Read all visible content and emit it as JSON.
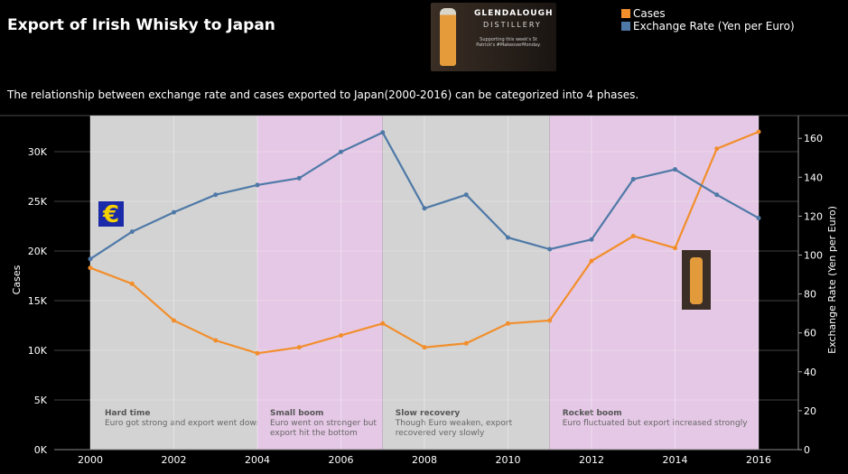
{
  "title": "Export of Irish Whisky to Japan",
  "subtitle": "The relationship between exchange rate and cases exported to Japan(2000-2016) can be categorized into 4 phases.",
  "ad": {
    "line1": "GLENDALOUGH",
    "line2": "DISTILLERY",
    "line3": "Supporting this week's St Patrick's #MakeoverMonday."
  },
  "chart_data": {
    "type": "line",
    "x": [
      2000,
      2001,
      2002,
      2003,
      2004,
      2005,
      2006,
      2007,
      2008,
      2009,
      2010,
      2011,
      2012,
      2013,
      2014,
      2015,
      2016
    ],
    "xticks": [
      "2000",
      "2002",
      "2004",
      "2006",
      "2008",
      "2010",
      "2012",
      "2014",
      "2016"
    ],
    "ylabel": "Cases",
    "y2label": "Exchange Rate (Yen per Euro)",
    "ylim": [
      0,
      33500
    ],
    "y2lim": [
      0,
      172
    ],
    "yticks": [
      "0K",
      "5K",
      "10K",
      "15K",
      "20K",
      "25K",
      "30K"
    ],
    "y2ticks": [
      "0",
      "20",
      "40",
      "60",
      "80",
      "100",
      "120",
      "140",
      "160"
    ],
    "series": [
      {
        "name": "Cases",
        "axis": "left",
        "color": "#f28e2b",
        "values": [
          18300,
          16700,
          13000,
          11000,
          9700,
          10300,
          11500,
          12700,
          10300,
          10700,
          12700,
          13000,
          19000,
          21500,
          20300,
          30300,
          32000
        ]
      },
      {
        "name": "Exchange Rate (Yen per Euro)",
        "axis": "right",
        "color": "#4e79a7",
        "values": [
          98,
          112,
          122,
          131,
          136,
          139.5,
          153,
          163,
          124,
          131,
          109,
          103,
          108,
          139,
          144,
          131,
          119
        ]
      }
    ],
    "phases": [
      {
        "from": 2000,
        "to": 2004,
        "color": "#d3d3d3",
        "title": "Hard time",
        "desc": [
          "Euro got strong and export went down"
        ]
      },
      {
        "from": 2004,
        "to": 2007,
        "color": "#e5c8e5",
        "title": "Small boom",
        "desc": [
          "Euro went on stronger but",
          "export hit the bottom"
        ]
      },
      {
        "from": 2007,
        "to": 2011,
        "color": "#d3d3d3",
        "title": "Slow recovery",
        "desc": [
          "Though Euro weaken, export",
          "recovered very slowly"
        ]
      },
      {
        "from": 2011,
        "to": 2016,
        "color": "#e5c8e5",
        "title": "Rocket boom",
        "desc": [
          "Euro fluctuated but export increased strongly"
        ]
      }
    ],
    "legend": "top-right",
    "grid": true
  }
}
